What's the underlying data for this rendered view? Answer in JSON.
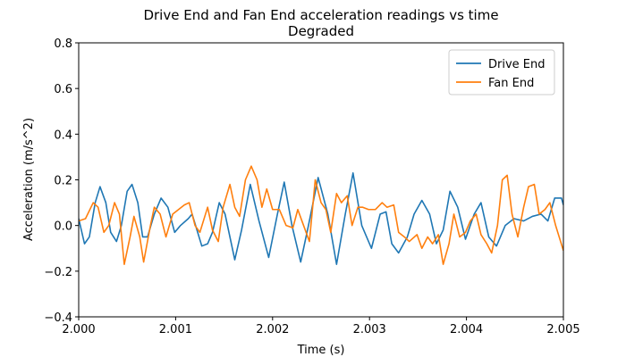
{
  "chart_data": {
    "type": "line",
    "title": "Drive End and Fan End acceleration readings vs time",
    "subtitle": "Degraded",
    "x_label": "Time (s)",
    "y_label": "Acceleration (m/s^2)",
    "xlim": [
      2.0,
      2.005
    ],
    "xticks": [
      {
        "value": 2.0,
        "label": "2.000"
      },
      {
        "value": 2.001,
        "label": "2.001"
      },
      {
        "value": 2.002,
        "label": "2.002"
      },
      {
        "value": 2.003,
        "label": "2.003"
      },
      {
        "value": 2.004,
        "label": "2.004"
      },
      {
        "value": 2.005,
        "label": "2.005"
      }
    ],
    "ylim": [
      -0.4,
      0.8
    ],
    "yticks": [
      {
        "value": -0.4,
        "label": "−0.4"
      },
      {
        "value": -0.2,
        "label": "−0.2"
      },
      {
        "value": 0,
        "label": "0.0"
      },
      0.2,
      0.4,
      0.6,
      0.8
    ],
    "legend": "upper right",
    "series": [
      {
        "name": "Drive End",
        "color": "#1f77b4",
        "x": [
          2.0,
          2.00006,
          2.00011,
          2.00017,
          2.00022,
          2.00028,
          2.00033,
          2.00039,
          2.00044,
          2.0005,
          2.00055,
          2.00061,
          2.00066,
          2.00071,
          2.00078,
          2.00085,
          2.00092,
          2.00099,
          2.00105,
          2.00113,
          2.00117,
          2.00122,
          2.00127,
          2.00133,
          2.00138,
          2.00145,
          2.00151,
          2.00161,
          2.00168,
          2.00177,
          2.00186,
          2.00196,
          2.00205,
          2.00212,
          2.0022,
          2.00229,
          2.00237,
          2.00247,
          2.00257,
          2.00266,
          2.00275,
          2.00283,
          2.00292,
          2.00302,
          2.00311,
          2.00317,
          2.00323,
          2.0033,
          2.00339,
          2.00346,
          2.00354,
          2.00362,
          2.00369,
          2.00376,
          2.00383,
          2.00391,
          2.00399,
          2.00408,
          2.00415,
          2.00423,
          2.00431,
          2.0044,
          2.00449,
          2.00459,
          2.00468,
          2.00477,
          2.00484,
          2.00491,
          2.00498,
          2.005
        ],
        "values": [
          0.03,
          -0.08,
          -0.05,
          0.1,
          0.17,
          0.1,
          -0.03,
          -0.07,
          0.0,
          0.15,
          0.18,
          0.1,
          -0.05,
          -0.05,
          0.05,
          0.12,
          0.08,
          -0.03,
          0.0,
          0.03,
          0.05,
          -0.02,
          -0.09,
          -0.08,
          -0.03,
          0.1,
          0.05,
          -0.15,
          -0.02,
          0.18,
          0.02,
          -0.14,
          0.05,
          0.19,
          0.0,
          -0.16,
          0.0,
          0.21,
          0.05,
          -0.17,
          0.05,
          0.23,
          0.0,
          -0.1,
          0.05,
          0.06,
          -0.08,
          -0.12,
          -0.05,
          0.05,
          0.11,
          0.05,
          -0.08,
          -0.02,
          0.15,
          0.08,
          -0.06,
          0.05,
          0.1,
          -0.05,
          -0.09,
          0.0,
          0.03,
          0.02,
          0.04,
          0.05,
          0.02,
          0.12,
          0.12,
          0.09
        ]
      },
      {
        "name": "Fan End",
        "color": "#ff7f0e",
        "x": [
          2.0,
          2.00007,
          2.00015,
          2.0002,
          2.00026,
          2.00031,
          2.00037,
          2.00042,
          2.00047,
          2.00053,
          2.00057,
          2.00063,
          2.00067,
          2.00074,
          2.00078,
          2.00084,
          2.0009,
          2.00097,
          2.00103,
          2.00109,
          2.00114,
          2.0012,
          2.00125,
          2.00133,
          2.00138,
          2.00144,
          2.00149,
          2.00156,
          2.00161,
          2.00166,
          2.00172,
          2.00178,
          2.00184,
          2.00189,
          2.00194,
          2.002,
          2.00207,
          2.00214,
          2.00221,
          2.00226,
          2.00232,
          2.00238,
          2.00244,
          2.0025,
          2.00255,
          2.0026,
          2.00266,
          2.00271,
          2.00277,
          2.00282,
          2.00288,
          2.00293,
          2.00299,
          2.00306,
          2.00313,
          2.00318,
          2.00325,
          2.0033,
          2.00336,
          2.00341,
          2.00349,
          2.00354,
          2.0036,
          2.00365,
          2.00371,
          2.00376,
          2.00382,
          2.00387,
          2.00393,
          2.00399,
          2.00404,
          2.0041,
          2.00415,
          2.00421,
          2.00426,
          2.00432,
          2.00437,
          2.00442,
          2.00447,
          2.00453,
          2.00459,
          2.00464,
          2.0047,
          2.00475,
          2.00481,
          2.00486,
          2.00492,
          2.005
        ],
        "values": [
          0.02,
          0.03,
          0.1,
          0.08,
          -0.03,
          0.0,
          0.1,
          0.05,
          -0.17,
          -0.05,
          0.04,
          -0.05,
          -0.16,
          0.0,
          0.08,
          0.05,
          -0.05,
          0.05,
          0.07,
          0.09,
          0.1,
          0.0,
          -0.03,
          0.08,
          -0.02,
          -0.07,
          0.08,
          0.18,
          0.08,
          0.04,
          0.2,
          0.26,
          0.2,
          0.08,
          0.16,
          0.07,
          0.07,
          0.0,
          -0.01,
          0.07,
          0.0,
          -0.07,
          0.2,
          0.1,
          0.07,
          -0.03,
          0.14,
          0.1,
          0.13,
          0.0,
          0.08,
          0.08,
          0.07,
          0.07,
          0.1,
          0.08,
          0.09,
          -0.03,
          -0.05,
          -0.07,
          -0.04,
          -0.1,
          -0.05,
          -0.08,
          -0.04,
          -0.17,
          -0.08,
          0.05,
          -0.05,
          -0.03,
          0.02,
          0.05,
          -0.04,
          -0.08,
          -0.12,
          0.0,
          0.2,
          0.22,
          0.05,
          -0.05,
          0.08,
          0.17,
          0.18,
          0.05,
          0.07,
          0.1,
          0.0,
          -0.11
        ]
      }
    ]
  }
}
